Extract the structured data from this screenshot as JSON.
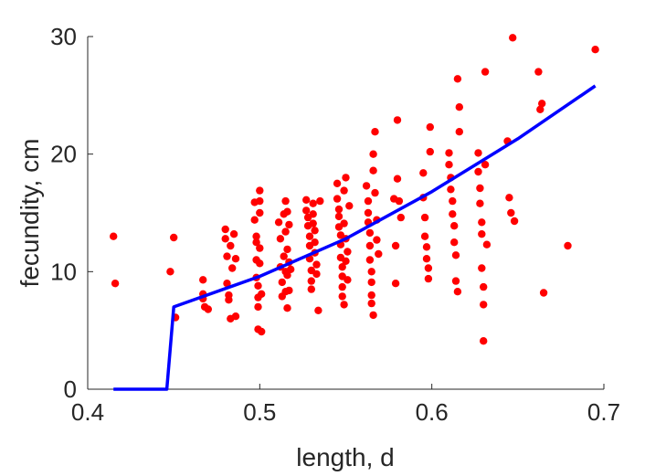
{
  "chart_data": {
    "type": "scatter",
    "title": "",
    "xlabel": "length, d",
    "ylabel": "fecundity, cm",
    "xlim": [
      0.4,
      0.7
    ],
    "ylim": [
      0,
      30
    ],
    "xticks": [
      0.4,
      0.5,
      0.6,
      0.7
    ],
    "xtick_labels": [
      "0.4",
      "0.5",
      "0.6",
      "0.7"
    ],
    "yticks": [
      0,
      10,
      20,
      30
    ],
    "ytick_labels": [
      "0",
      "10",
      "20",
      "30"
    ],
    "grid": false,
    "colors": {
      "points": "#ff0000",
      "fit_line": "#0000ff",
      "axes": "#262626"
    },
    "points": {
      "x": [
        0.415,
        0.416,
        0.448,
        0.45,
        0.451,
        0.467,
        0.467,
        0.467,
        0.468,
        0.47,
        0.48,
        0.48,
        0.481,
        0.481,
        0.482,
        0.482,
        0.483,
        0.483,
        0.484,
        0.485,
        0.486,
        0.486,
        0.497,
        0.497,
        0.498,
        0.498,
        0.498,
        0.498,
        0.499,
        0.499,
        0.499,
        0.499,
        0.5,
        0.5,
        0.5,
        0.5,
        0.5,
        0.501,
        0.501,
        0.511,
        0.512,
        0.512,
        0.513,
        0.513,
        0.514,
        0.514,
        0.515,
        0.515,
        0.515,
        0.515,
        0.516,
        0.516,
        0.516,
        0.516,
        0.517,
        0.517,
        0.517,
        0.518,
        0.527,
        0.527,
        0.528,
        0.528,
        0.529,
        0.529,
        0.529,
        0.53,
        0.53,
        0.53,
        0.531,
        0.531,
        0.531,
        0.532,
        0.532,
        0.532,
        0.533,
        0.533,
        0.534,
        0.535,
        0.545,
        0.545,
        0.546,
        0.546,
        0.546,
        0.547,
        0.547,
        0.547,
        0.548,
        0.548,
        0.548,
        0.548,
        0.549,
        0.549,
        0.549,
        0.55,
        0.55,
        0.55,
        0.551,
        0.551,
        0.552,
        0.562,
        0.563,
        0.563,
        0.563,
        0.564,
        0.564,
        0.564,
        0.565,
        0.565,
        0.565,
        0.565,
        0.566,
        0.566,
        0.566,
        0.567,
        0.567,
        0.568,
        0.568,
        0.569,
        0.578,
        0.579,
        0.579,
        0.58,
        0.58,
        0.581,
        0.582,
        0.595,
        0.595,
        0.596,
        0.596,
        0.597,
        0.597,
        0.598,
        0.598,
        0.599,
        0.599,
        0.61,
        0.61,
        0.611,
        0.611,
        0.612,
        0.612,
        0.613,
        0.613,
        0.614,
        0.614,
        0.615,
        0.615,
        0.616,
        0.616,
        0.627,
        0.627,
        0.628,
        0.628,
        0.629,
        0.629,
        0.629,
        0.63,
        0.63,
        0.63,
        0.631,
        0.631,
        0.632,
        0.644,
        0.645,
        0.646,
        0.647,
        0.648,
        0.662,
        0.663,
        0.664,
        0.665,
        0.679,
        0.695
      ],
      "y": [
        13.0,
        9.0,
        10.0,
        12.9,
        6.1,
        9.3,
        8.1,
        7.7,
        7.0,
        6.8,
        13.6,
        12.8,
        11.3,
        9.0,
        8.0,
        7.6,
        6.0,
        12.2,
        10.3,
        13.2,
        11.1,
        6.2,
        15.9,
        14.4,
        13.0,
        12.5,
        11.0,
        9.5,
        8.8,
        7.8,
        7.0,
        5.1,
        16.0,
        16.9,
        15.0,
        12.0,
        10.7,
        8.1,
        4.9,
        14.2,
        12.8,
        10.4,
        9.1,
        7.9,
        11.3,
        14.9,
        16.0,
        13.4,
        10.0,
        8.3,
        9.7,
        6.9,
        11.9,
        15.1,
        14.0,
        10.8,
        8.4,
        10.2,
        16.1,
        15.2,
        14.6,
        13.9,
        13.0,
        12.2,
        11.1,
        10.1,
        9.2,
        8.5,
        15.8,
        14.9,
        14.1,
        13.5,
        12.5,
        11.6,
        10.6,
        9.8,
        6.7,
        16.0,
        17.5,
        16.2,
        15.3,
        14.7,
        13.8,
        13.1,
        12.3,
        11.2,
        10.4,
        9.6,
        8.7,
        7.9,
        7.2,
        16.9,
        14.1,
        18.0,
        12.8,
        10.9,
        9.3,
        11.7,
        15.6,
        17.3,
        16.0,
        15.0,
        14.2,
        13.3,
        12.2,
        11.0,
        10.0,
        9.1,
        8.0,
        7.3,
        6.3,
        18.6,
        20.0,
        21.9,
        16.7,
        14.4,
        12.7,
        11.5,
        16.2,
        12.2,
        9.0,
        22.9,
        17.9,
        16.0,
        14.6,
        18.4,
        16.3,
        14.6,
        13.0,
        12.1,
        11.1,
        10.3,
        9.4,
        22.3,
        20.2,
        20.1,
        19.1,
        18.0,
        17.0,
        16.0,
        14.9,
        13.9,
        12.5,
        11.4,
        9.2,
        8.3,
        26.4,
        24.0,
        21.9,
        20.1,
        18.5,
        17.1,
        15.8,
        14.2,
        13.2,
        10.3,
        8.7,
        7.2,
        4.1,
        27.0,
        19.1,
        12.3,
        21.1,
        16.3,
        15.0,
        29.9,
        14.3,
        27.0,
        23.8,
        24.3,
        8.2,
        12.2,
        28.9
      ]
    },
    "fit_line": {
      "x": [
        0.415,
        0.446,
        0.45,
        0.5,
        0.55,
        0.6,
        0.65,
        0.695
      ],
      "y": [
        0.0,
        0.0,
        7.0,
        9.6,
        12.8,
        16.8,
        21.3,
        25.8
      ]
    }
  }
}
